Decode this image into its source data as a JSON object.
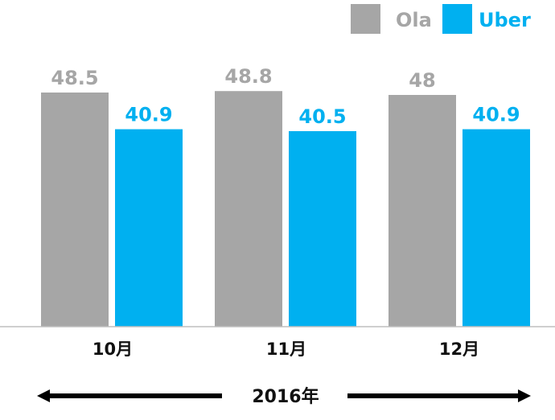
{
  "chart_data": {
    "type": "bar",
    "categories": [
      "10月",
      "11月",
      "12月"
    ],
    "series": [
      {
        "name": "Ola",
        "values": [
          48.5,
          48.8,
          48
        ],
        "labels": [
          "48.5",
          "48.8",
          "48"
        ],
        "color": "#a6a6a6"
      },
      {
        "name": "Uber",
        "values": [
          40.9,
          40.5,
          40.9
        ],
        "labels": [
          "40.9",
          "40.5",
          "40.9"
        ],
        "color": "#00b0f0"
      }
    ],
    "ylim": [
      0,
      55
    ],
    "grid": false,
    "legend_position": "top-right",
    "period_label": "2016年"
  }
}
